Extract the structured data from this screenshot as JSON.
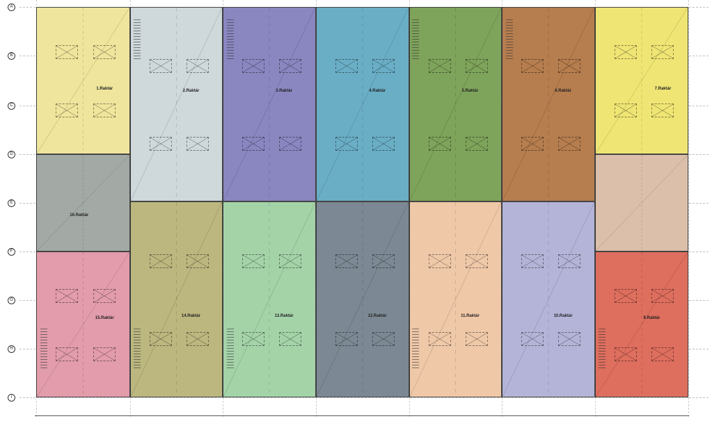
{
  "grid_rows": [
    "A",
    "B",
    "C",
    "D",
    "E",
    "F",
    "G",
    "H",
    "I"
  ],
  "rooms": [
    {
      "label": "1.Raktár",
      "color": "#f0e59c"
    },
    {
      "label": "2.Raktár",
      "color": "#cfd8db"
    },
    {
      "label": "3.Raktár",
      "color": "#8a86c0"
    },
    {
      "label": "4.Raktár",
      "color": "#6aaec6"
    },
    {
      "label": "5.Raktár",
      "color": "#7ea35a"
    },
    {
      "label": "6.Raktár",
      "color": "#b67d4e"
    },
    {
      "label": "7.Raktár",
      "color": "#efe574"
    },
    {
      "label": "",
      "color": "#dbbfaa"
    },
    {
      "label": "9.Raktár",
      "color": "#de6e5e"
    },
    {
      "label": "10.Raktár",
      "color": "#b4b4d8"
    },
    {
      "label": "11.Raktár",
      "color": "#efc8a8"
    },
    {
      "label": "12.Raktár",
      "color": "#7c8893"
    },
    {
      "label": "13.Raktár",
      "color": "#a4d3a8"
    },
    {
      "label": "14.Raktár",
      "color": "#bcb77f"
    },
    {
      "label": "15.Raktár",
      "color": "#e29cab"
    },
    {
      "label": "16.Raktár",
      "color": "#a3aaa5"
    }
  ]
}
